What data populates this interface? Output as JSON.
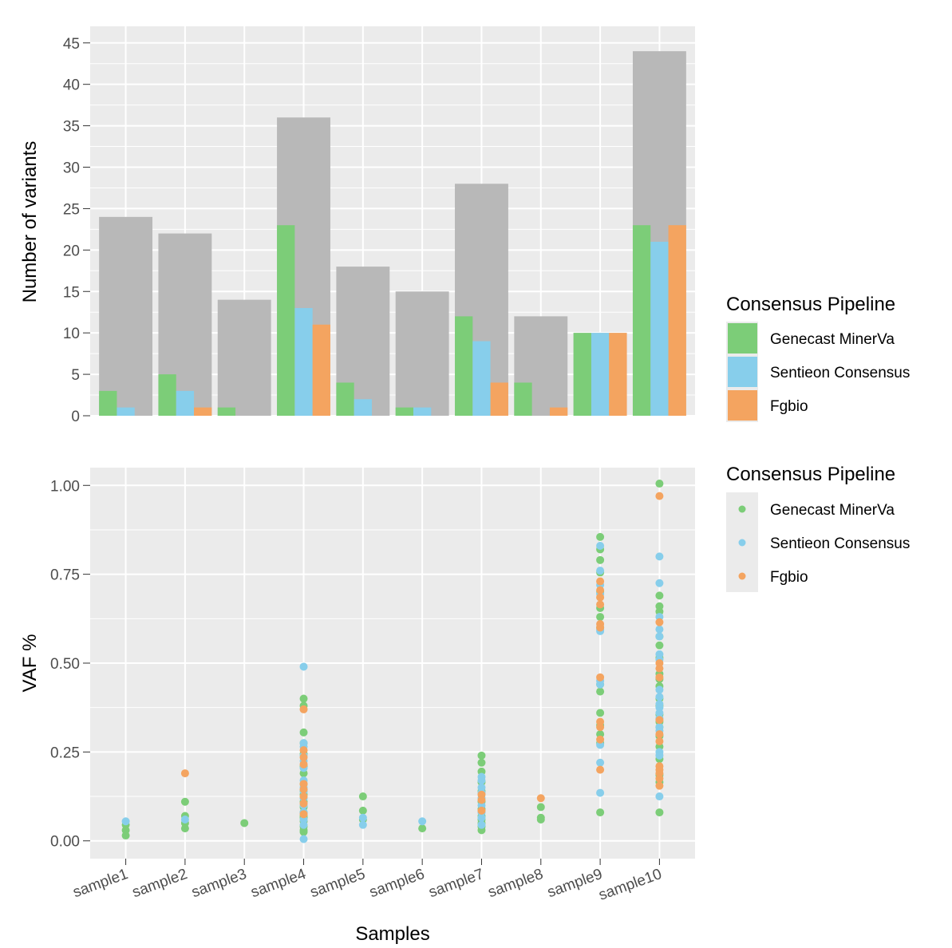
{
  "colors": {
    "panel_bg": "#ebebeb",
    "grid_major": "#ffffff",
    "total_bar": "#b8b8b8",
    "genecast": "#7ccd78",
    "sentieon": "#87ceeb",
    "fgbio": "#f4a460"
  },
  "chart_data": [
    {
      "type": "bar",
      "ylabel": "Number of variants",
      "ylim": [
        0,
        47
      ],
      "yticks": [
        0,
        5,
        10,
        15,
        20,
        25,
        30,
        35,
        40,
        45
      ],
      "categories": [
        "sample1",
        "sample2",
        "sample3",
        "sample4",
        "sample5",
        "sample6",
        "sample7",
        "sample8",
        "sample9",
        "sample10"
      ],
      "totals": [
        24,
        22,
        14,
        36,
        18,
        15,
        28,
        12,
        10,
        44
      ],
      "series": [
        {
          "name": "Genecast MinerVa",
          "values": [
            3,
            5,
            1,
            23,
            4,
            1,
            12,
            4,
            10,
            23
          ]
        },
        {
          "name": "Sentieon Consensus",
          "values": [
            1,
            3,
            0,
            13,
            2,
            1,
            9,
            0,
            10,
            21
          ]
        },
        {
          "name": "Fgbio",
          "values": [
            0,
            1,
            0,
            11,
            0,
            0,
            4,
            1,
            10,
            23
          ]
        }
      ],
      "legend": {
        "title": "Consensus Pipeline",
        "position": "right"
      }
    },
    {
      "type": "scatter",
      "xlabel": "Samples",
      "ylabel": "VAF %",
      "ylim": [
        -0.05,
        1.05
      ],
      "yticks": [
        "0.00",
        "0.25",
        "0.50",
        "0.75",
        "1.00"
      ],
      "categories": [
        "sample1",
        "sample2",
        "sample3",
        "sample4",
        "sample5",
        "sample6",
        "sample7",
        "sample8",
        "sample9",
        "sample10"
      ],
      "series": [
        {
          "name": "Genecast MinerVa",
          "points": [
            [
              1,
              0.045
            ],
            [
              1,
              0.03
            ],
            [
              1,
              0.015
            ],
            [
              2,
              0.11
            ],
            [
              2,
              0.07
            ],
            [
              2,
              0.05
            ],
            [
              2,
              0.035
            ],
            [
              3,
              0.05
            ],
            [
              4,
              0.4
            ],
            [
              4,
              0.38
            ],
            [
              4,
              0.305
            ],
            [
              4,
              0.275
            ],
            [
              4,
              0.245
            ],
            [
              4,
              0.19
            ],
            [
              4,
              0.16
            ],
            [
              4,
              0.13
            ],
            [
              4,
              0.11
            ],
            [
              4,
              0.095
            ],
            [
              4,
              0.07
            ],
            [
              4,
              0.055
            ],
            [
              4,
              0.04
            ],
            [
              4,
              0.03
            ],
            [
              4,
              0.025
            ],
            [
              4,
              0.08
            ],
            [
              4,
              0.21
            ],
            [
              4,
              0.14
            ],
            [
              4,
              0.065
            ],
            [
              5,
              0.125
            ],
            [
              5,
              0.085
            ],
            [
              5,
              0.06
            ],
            [
              6,
              0.035
            ],
            [
              7,
              0.24
            ],
            [
              7,
              0.22
            ],
            [
              7,
              0.195
            ],
            [
              7,
              0.165
            ],
            [
              7,
              0.14
            ],
            [
              7,
              0.11
            ],
            [
              7,
              0.09
            ],
            [
              7,
              0.07
            ],
            [
              7,
              0.06
            ],
            [
              7,
              0.05
            ],
            [
              7,
              0.04
            ],
            [
              7,
              0.03
            ],
            [
              8,
              0.095
            ],
            [
              8,
              0.065
            ],
            [
              8,
              0.06
            ],
            [
              9,
              0.855
            ],
            [
              9,
              0.82
            ],
            [
              9,
              0.79
            ],
            [
              9,
              0.755
            ],
            [
              9,
              0.7
            ],
            [
              9,
              0.655
            ],
            [
              9,
              0.63
            ],
            [
              9,
              0.6
            ],
            [
              9,
              0.44
            ],
            [
              9,
              0.42
            ],
            [
              9,
              0.36
            ],
            [
              9,
              0.325
            ],
            [
              9,
              0.3
            ],
            [
              9,
              0.275
            ],
            [
              9,
              0.08
            ],
            [
              10,
              1.005
            ],
            [
              10,
              0.69
            ],
            [
              10,
              0.66
            ],
            [
              10,
              0.645
            ],
            [
              10,
              0.575
            ],
            [
              10,
              0.55
            ],
            [
              10,
              0.515
            ],
            [
              10,
              0.47
            ],
            [
              10,
              0.455
            ],
            [
              10,
              0.435
            ],
            [
              10,
              0.4
            ],
            [
              10,
              0.38
            ],
            [
              10,
              0.355
            ],
            [
              10,
              0.335
            ],
            [
              10,
              0.32
            ],
            [
              10,
              0.295
            ],
            [
              10,
              0.265
            ],
            [
              10,
              0.23
            ],
            [
              10,
              0.185
            ],
            [
              10,
              0.165
            ],
            [
              10,
              0.08
            ]
          ]
        },
        {
          "name": "Sentieon Consensus",
          "points": [
            [
              1,
              0.055
            ],
            [
              2,
              0.06
            ],
            [
              4,
              0.49
            ],
            [
              4,
              0.275
            ],
            [
              4,
              0.265
            ],
            [
              4,
              0.24
            ],
            [
              4,
              0.225
            ],
            [
              4,
              0.205
            ],
            [
              4,
              0.17
            ],
            [
              4,
              0.15
            ],
            [
              4,
              0.14
            ],
            [
              4,
              0.12
            ],
            [
              4,
              0.1
            ],
            [
              4,
              0.08
            ],
            [
              4,
              0.06
            ],
            [
              4,
              0.045
            ],
            [
              4,
              0.005
            ],
            [
              5,
              0.065
            ],
            [
              5,
              0.045
            ],
            [
              6,
              0.055
            ],
            [
              7,
              0.18
            ],
            [
              7,
              0.17
            ],
            [
              7,
              0.15
            ],
            [
              7,
              0.135
            ],
            [
              7,
              0.12
            ],
            [
              7,
              0.1
            ],
            [
              7,
              0.08
            ],
            [
              7,
              0.065
            ],
            [
              7,
              0.045
            ],
            [
              9,
              0.83
            ],
            [
              9,
              0.76
            ],
            [
              9,
              0.72
            ],
            [
              9,
              0.695
            ],
            [
              9,
              0.595
            ],
            [
              9,
              0.59
            ],
            [
              9,
              0.45
            ],
            [
              9,
              0.44
            ],
            [
              9,
              0.27
            ],
            [
              9,
              0.22
            ],
            [
              9,
              0.135
            ],
            [
              10,
              0.8
            ],
            [
              10,
              0.725
            ],
            [
              10,
              0.63
            ],
            [
              10,
              0.595
            ],
            [
              10,
              0.575
            ],
            [
              10,
              0.525
            ],
            [
              10,
              0.51
            ],
            [
              10,
              0.425
            ],
            [
              10,
              0.405
            ],
            [
              10,
              0.385
            ],
            [
              10,
              0.375
            ],
            [
              10,
              0.36
            ],
            [
              10,
              0.345
            ],
            [
              10,
              0.32
            ],
            [
              10,
              0.31
            ],
            [
              10,
              0.25
            ],
            [
              10,
              0.24
            ],
            [
              10,
              0.125
            ]
          ]
        },
        {
          "name": "Fgbio",
          "points": [
            [
              2,
              0.19
            ],
            [
              4,
              0.37
            ],
            [
              4,
              0.255
            ],
            [
              4,
              0.235
            ],
            [
              4,
              0.215
            ],
            [
              4,
              0.16
            ],
            [
              4,
              0.145
            ],
            [
              4,
              0.125
            ],
            [
              4,
              0.105
            ],
            [
              4,
              0.075
            ],
            [
              7,
              0.13
            ],
            [
              7,
              0.115
            ],
            [
              7,
              0.085
            ],
            [
              8,
              0.12
            ],
            [
              9,
              0.73
            ],
            [
              9,
              0.705
            ],
            [
              9,
              0.685
            ],
            [
              9,
              0.665
            ],
            [
              9,
              0.61
            ],
            [
              9,
              0.6
            ],
            [
              9,
              0.46
            ],
            [
              9,
              0.335
            ],
            [
              9,
              0.32
            ],
            [
              9,
              0.285
            ],
            [
              9,
              0.2
            ],
            [
              10,
              0.97
            ],
            [
              10,
              0.615
            ],
            [
              10,
              0.5
            ],
            [
              10,
              0.485
            ],
            [
              10,
              0.46
            ],
            [
              10,
              0.34
            ],
            [
              10,
              0.3
            ],
            [
              10,
              0.28
            ],
            [
              10,
              0.21
            ],
            [
              10,
              0.2
            ],
            [
              10,
              0.19
            ],
            [
              10,
              0.175
            ],
            [
              10,
              0.155
            ]
          ]
        }
      ],
      "legend": {
        "title": "Consensus Pipeline",
        "position": "right"
      }
    }
  ]
}
